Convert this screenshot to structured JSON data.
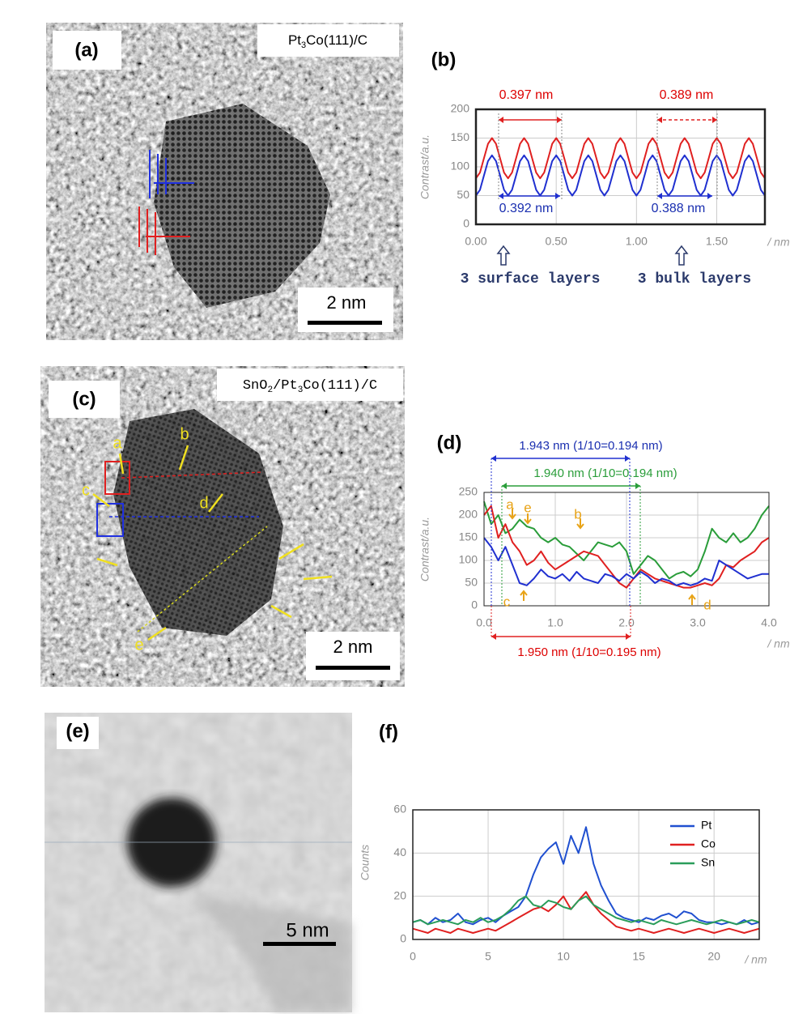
{
  "image_panels": [
    {
      "label": "(a)",
      "caption": [
        "Pt",
        "3",
        "Co(111)/C"
      ],
      "scale": "2 nm"
    },
    {
      "label": "(c)",
      "caption": [
        "SnO",
        "2",
        "/Pt",
        "3",
        "Co(111)/C"
      ],
      "scale": "2 nm",
      "markers": [
        "a",
        "b",
        "c",
        "d",
        "e"
      ]
    },
    {
      "label": "(e)",
      "scale": "5 nm"
    }
  ],
  "chart_data": [
    {
      "type": "line",
      "title": "(b)",
      "y_label": "Contrast/a.u.",
      "x_label": "/ nm",
      "x": [
        0,
        0.025,
        0.05,
        0.075,
        0.1,
        0.125,
        0.15,
        0.175,
        0.2,
        0.225,
        0.25,
        0.275,
        0.3,
        0.325,
        0.35,
        0.375,
        0.4,
        0.425,
        0.45,
        0.475,
        0.5,
        0.525,
        0.55,
        0.575,
        0.6,
        0.625,
        0.65,
        0.675,
        0.7,
        0.725,
        0.75,
        0.775,
        0.8,
        0.825,
        0.85,
        0.875,
        0.9,
        0.925,
        0.95,
        0.975,
        1,
        1.025,
        1.05,
        1.075,
        1.1,
        1.125,
        1.15,
        1.175,
        1.2,
        1.225,
        1.25,
        1.275,
        1.3,
        1.325,
        1.35,
        1.375,
        1.4,
        1.425,
        1.45,
        1.475,
        1.5,
        1.525,
        1.55,
        1.575,
        1.6,
        1.625,
        1.65,
        1.675,
        1.7,
        1.725,
        1.75,
        1.775,
        1.8
      ],
      "series": [
        {
          "color": "#e02020",
          "values": [
            80,
            90,
            115,
            140,
            150,
            140,
            115,
            90,
            80,
            90,
            115,
            140,
            150,
            140,
            115,
            90,
            80,
            90,
            115,
            140,
            150,
            140,
            115,
            90,
            80,
            90,
            115,
            140,
            150,
            140,
            115,
            90,
            80,
            90,
            115,
            140,
            150,
            140,
            115,
            90,
            80,
            90,
            115,
            140,
            150,
            140,
            115,
            90,
            80,
            90,
            115,
            140,
            150,
            140,
            115,
            90,
            80,
            90,
            115,
            140,
            150,
            140,
            115,
            90,
            80,
            90,
            115,
            140,
            150,
            140,
            115,
            90,
            80
          ]
        },
        {
          "color": "#2030d0",
          "values": [
            50,
            60,
            85,
            110,
            120,
            110,
            85,
            60,
            50,
            60,
            85,
            110,
            120,
            110,
            85,
            60,
            50,
            60,
            85,
            110,
            120,
            110,
            85,
            60,
            50,
            60,
            85,
            110,
            120,
            110,
            85,
            60,
            50,
            60,
            85,
            110,
            120,
            110,
            85,
            60,
            50,
            60,
            85,
            110,
            120,
            110,
            85,
            60,
            50,
            60,
            85,
            110,
            120,
            110,
            85,
            60,
            50,
            60,
            85,
            110,
            120,
            110,
            85,
            60,
            50,
            60,
            85,
            110,
            120,
            110,
            85,
            60,
            50
          ]
        }
      ],
      "xlim": [
        0,
        1.8
      ],
      "xticks": [
        {
          "value": 0,
          "label": "0.00"
        },
        {
          "value": 0.5,
          "label": "0.50"
        },
        {
          "value": 1,
          "label": "1.00"
        },
        {
          "value": 1.5,
          "label": "1.50"
        }
      ],
      "ylim": [
        0,
        200
      ],
      "yticks": [
        0,
        50,
        100,
        150,
        200
      ],
      "grid": true,
      "annotations": [
        "0.397 nm",
        "0.389 nm",
        "0.392 nm",
        "0.388 nm",
        "3 surface layers",
        "3 bulk layers"
      ]
    },
    {
      "type": "line",
      "title": "(d)",
      "y_label": "Contrast/a.u.",
      "x_label": "/ nm",
      "x": [
        0,
        0.1,
        0.2,
        0.3,
        0.4,
        0.5,
        0.6,
        0.7,
        0.8,
        0.9,
        1,
        1.1,
        1.2,
        1.3,
        1.4,
        1.5,
        1.6,
        1.7,
        1.8,
        1.9,
        2,
        2.1,
        2.2,
        2.3,
        2.4,
        2.5,
        2.6,
        2.7,
        2.8,
        2.9,
        3,
        3.1,
        3.2,
        3.3,
        3.4,
        3.5,
        3.6,
        3.7,
        3.8,
        3.9,
        4
      ],
      "series": [
        {
          "color": "#2a9d3a",
          "values": [
            230,
            180,
            200,
            160,
            170,
            190,
            175,
            170,
            150,
            140,
            150,
            135,
            130,
            115,
            100,
            120,
            140,
            135,
            130,
            140,
            120,
            70,
            90,
            110,
            100,
            80,
            60,
            70,
            75,
            65,
            80,
            120,
            170,
            150,
            140,
            160,
            140,
            150,
            170,
            200,
            220
          ]
        },
        {
          "color": "#e02020",
          "values": [
            200,
            220,
            150,
            180,
            140,
            120,
            90,
            100,
            120,
            95,
            80,
            90,
            100,
            110,
            120,
            115,
            110,
            90,
            70,
            50,
            40,
            60,
            80,
            70,
            60,
            55,
            50,
            45,
            40,
            40,
            45,
            50,
            45,
            60,
            90,
            85,
            100,
            110,
            120,
            140,
            150
          ]
        },
        {
          "color": "#2030d0",
          "values": [
            150,
            130,
            100,
            130,
            90,
            50,
            45,
            60,
            80,
            65,
            60,
            70,
            55,
            75,
            60,
            55,
            50,
            70,
            65,
            55,
            70,
            60,
            75,
            65,
            50,
            60,
            55,
            45,
            50,
            45,
            50,
            60,
            55,
            100,
            90,
            80,
            70,
            60,
            65,
            70,
            70
          ]
        }
      ],
      "xlim": [
        0,
        4
      ],
      "xticks": [
        {
          "value": 0,
          "label": "0.0"
        },
        {
          "value": 1,
          "label": "1.0"
        },
        {
          "value": 2,
          "label": "2.0"
        },
        {
          "value": 3,
          "label": "3.0"
        },
        {
          "value": 4,
          "label": "4.0"
        }
      ],
      "ylim": [
        0,
        250
      ],
      "yticks": [
        0,
        50,
        100,
        150,
        200,
        250
      ],
      "grid": true,
      "annotations": [
        "1.943 nm (1/10=0.194 nm)",
        "1.940 nm (1/10=0.194 nm)",
        "1.950 nm (1/10=0.195 nm)",
        "a",
        "e",
        "b",
        "c",
        "d"
      ]
    },
    {
      "type": "line",
      "title": "(f)",
      "y_label": "Counts",
      "x_label": "/ nm",
      "x": [
        0,
        0.5,
        1,
        1.5,
        2,
        2.5,
        3,
        3.5,
        4,
        4.5,
        5,
        5.5,
        6,
        6.5,
        7,
        7.5,
        8,
        8.5,
        9,
        9.5,
        10,
        10.5,
        11,
        11.5,
        12,
        12.5,
        13,
        13.5,
        14,
        14.5,
        15,
        15.5,
        16,
        16.5,
        17,
        17.5,
        18,
        18.5,
        19,
        19.5,
        20,
        20.5,
        21,
        21.5,
        22,
        22.5,
        23
      ],
      "series": [
        {
          "name": "Pt",
          "color": "#2050d0",
          "values": [
            8,
            9,
            7,
            10,
            8,
            9,
            12,
            8,
            7,
            9,
            10,
            8,
            11,
            13,
            15,
            20,
            30,
            38,
            42,
            45,
            35,
            48,
            40,
            52,
            35,
            25,
            18,
            12,
            10,
            9,
            8,
            10,
            9,
            11,
            12,
            10,
            13,
            12,
            9,
            8,
            8,
            7,
            8,
            7,
            9,
            7,
            8
          ]
        },
        {
          "name": "Co",
          "color": "#e02020",
          "values": [
            5,
            4,
            3,
            5,
            4,
            3,
            5,
            4,
            3,
            4,
            5,
            4,
            6,
            8,
            10,
            12,
            14,
            15,
            13,
            16,
            20,
            14,
            18,
            22,
            16,
            12,
            9,
            6,
            5,
            4,
            5,
            4,
            3,
            4,
            5,
            4,
            3,
            4,
            5,
            4,
            3,
            4,
            5,
            4,
            3,
            4,
            5
          ]
        },
        {
          "name": "Sn",
          "color": "#2a9d5a",
          "values": [
            8,
            9,
            7,
            8,
            9,
            8,
            7,
            9,
            8,
            10,
            8,
            9,
            11,
            14,
            18,
            20,
            16,
            15,
            18,
            17,
            15,
            14,
            18,
            20,
            16,
            14,
            12,
            10,
            9,
            8,
            9,
            8,
            7,
            9,
            8,
            7,
            8,
            9,
            8,
            7,
            8,
            9,
            8,
            7,
            8,
            9,
            8
          ]
        }
      ],
      "xlim": [
        0,
        23
      ],
      "xticks": [
        0,
        5,
        10,
        15,
        20
      ],
      "ylim": [
        0,
        60
      ],
      "yticks": [
        0,
        20,
        40,
        60
      ],
      "grid": true,
      "legend": "upper right"
    }
  ]
}
